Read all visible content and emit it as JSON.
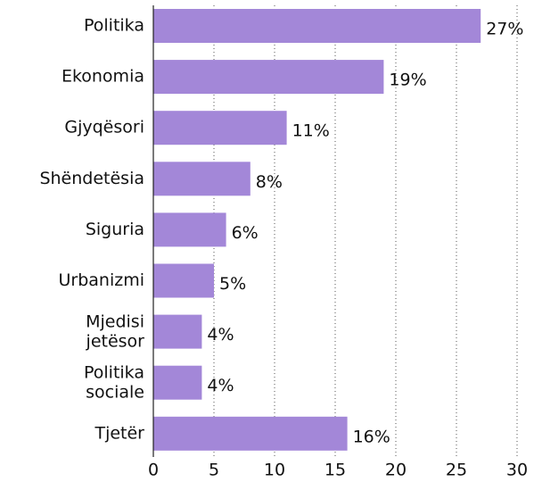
{
  "chart_data": {
    "type": "barh",
    "categories": [
      "Politika",
      "Ekonomia",
      "Gjyqësori",
      "Shëndetësia",
      "Siguria",
      "Urbanizmi",
      "Mjedisi\njetësor",
      "Politika\nsociale",
      "Tjetër"
    ],
    "values": [
      27,
      19,
      11,
      8,
      6,
      5,
      4,
      4,
      16
    ],
    "value_labels": [
      "27%",
      "19%",
      "11%",
      "8%",
      "6%",
      "5%",
      "4%",
      "4%",
      "16%"
    ],
    "color": "#a387d8",
    "xlim": [
      0,
      30
    ],
    "xticks": [
      0,
      5,
      10,
      15,
      20,
      25,
      30
    ],
    "grid": true
  }
}
